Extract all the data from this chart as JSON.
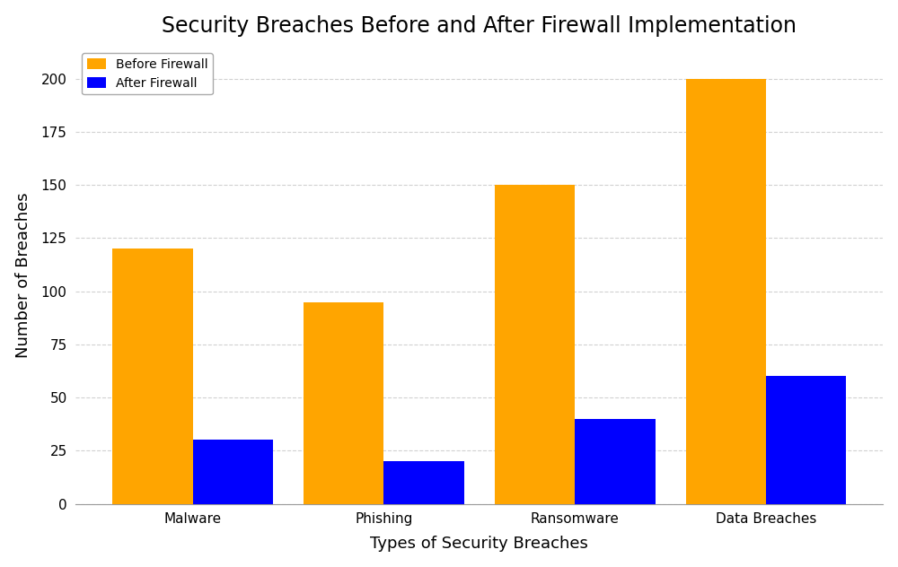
{
  "title": "Security Breaches Before and After Firewall Implementation",
  "xlabel": "Types of Security Breaches",
  "ylabel": "Number of Breaches",
  "categories": [
    "Malware",
    "Phishing",
    "Ransomware",
    "Data Breaches"
  ],
  "before_firewall": [
    120,
    95,
    150,
    200
  ],
  "after_firewall": [
    30,
    20,
    40,
    60
  ],
  "color_before": "#FFA500",
  "color_after": "#0000FF",
  "legend_before": "Before Firewall",
  "legend_after": "After Firewall",
  "ylim": [
    0,
    215
  ],
  "yticks": [
    0,
    25,
    50,
    75,
    100,
    125,
    150,
    175,
    200
  ],
  "bar_width": 0.42,
  "background_color": "#FFFFFF",
  "grid_color": "#CCCCCC",
  "title_fontsize": 17,
  "label_fontsize": 13,
  "figsize": [
    10.0,
    6.32
  ],
  "dpi": 100
}
